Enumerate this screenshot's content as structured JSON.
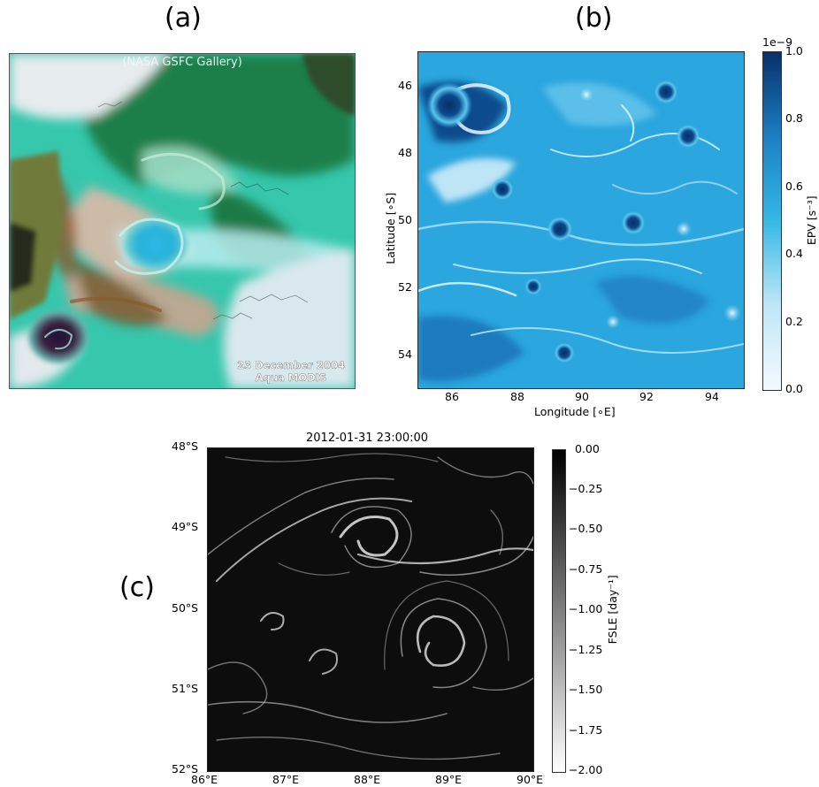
{
  "panels": {
    "a": {
      "label": "(a)",
      "watermark": "(NASA GSFC Gallery)",
      "caption_line1": "23 December 2004",
      "caption_line2": "Aqua MODIS"
    },
    "b": {
      "label": "(b)",
      "xlabel": "Longitude [∘E]",
      "ylabel": "Latitude [∘S]",
      "xticks": [
        "86",
        "88",
        "90",
        "92",
        "94"
      ],
      "yticks": [
        "46",
        "48",
        "50",
        "52",
        "54"
      ],
      "colorbar": {
        "label": "EPV [s⁻³]",
        "scale_note": "1e−9",
        "ticks": [
          "1.0",
          "0.8",
          "0.6",
          "0.4",
          "0.2",
          "0.0"
        ],
        "color_low": "#f4f9ff",
        "color_high": "#08306b"
      }
    },
    "c": {
      "label": "(c)",
      "title": "2012-01-31 23:00:00",
      "xticks": [
        "86°E",
        "87°E",
        "88°E",
        "89°E",
        "90°E"
      ],
      "yticks": [
        "48°S",
        "49°S",
        "50°S",
        "51°S",
        "52°S"
      ],
      "colorbar": {
        "label": "FSLE [day⁻¹]",
        "ticks": [
          "0.00",
          "−0.25",
          "−0.50",
          "−0.75",
          "−1.00",
          "−1.25",
          "−1.50",
          "−1.75",
          "−2.00"
        ],
        "color_low": "#ffffff",
        "color_high": "#000000"
      }
    }
  },
  "colors": {
    "ocean_teal": "#33c9b0",
    "ocean_green": "#1f8a4a",
    "cloud_white": "#e8eef2",
    "epv_mid": "#29a9e0",
    "epv_dark": "#0a4c8f",
    "fsle_bg": "#0d0d0d"
  }
}
